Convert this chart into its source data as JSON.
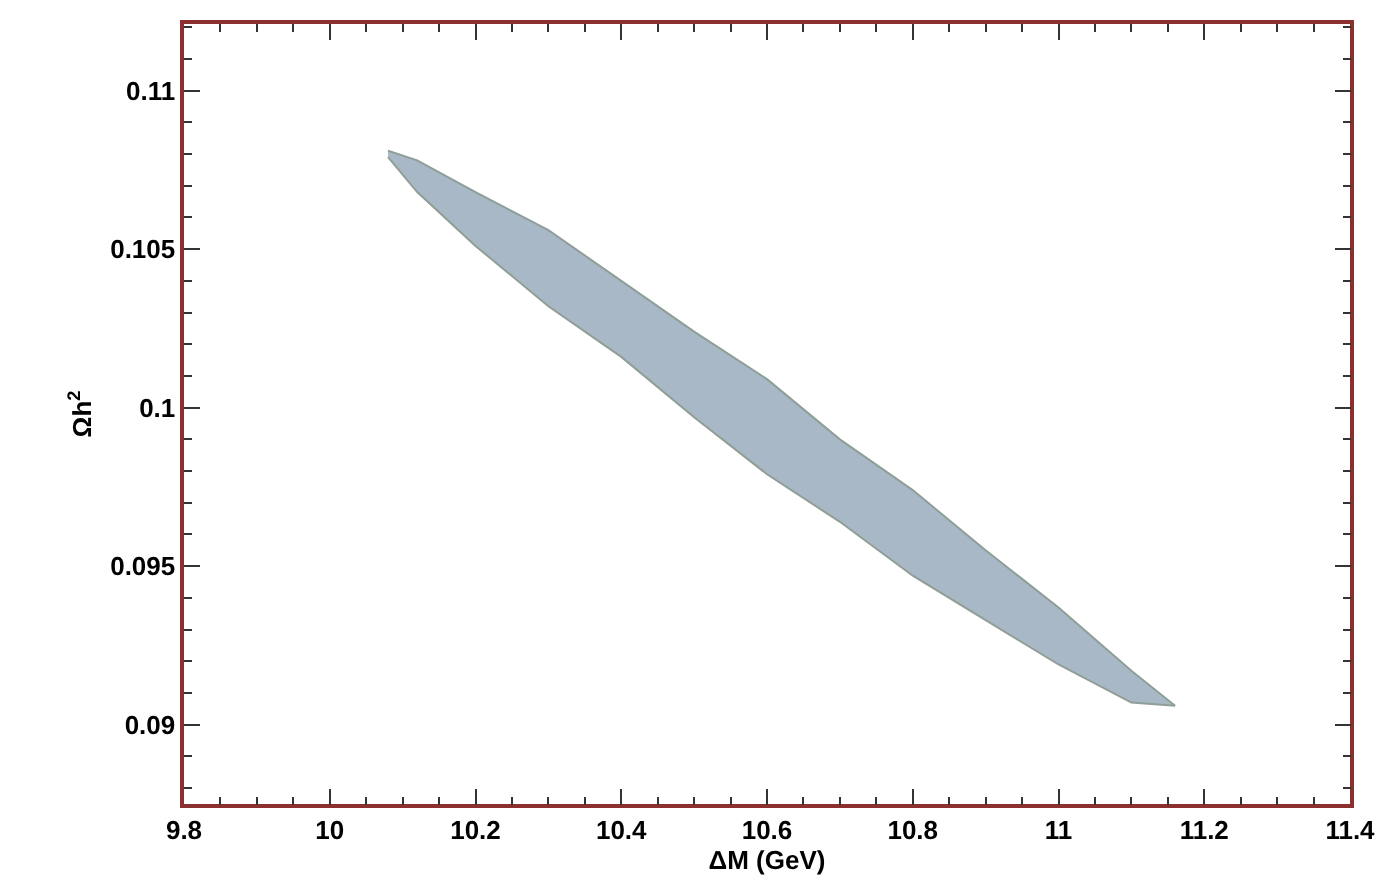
{
  "chart_data": {
    "type": "area",
    "xlabel": "ΔM (GeV)",
    "ylabel": "Ωh$^{2}$",
    "series": [
      {
        "type": "line",
        "color": "#8f9e96",
        "x": [
          10.08,
          10.12,
          10.2,
          10.3,
          10.4,
          10.5,
          10.6,
          10.7,
          10.8,
          10.9,
          11.0,
          11.1,
          11.16
        ],
        "values": [
          0.1079,
          0.1068,
          0.1051,
          0.1032,
          0.1016,
          0.0997,
          0.0979,
          0.0964,
          0.0947,
          0.0933,
          0.0919,
          0.0907,
          0.0906
        ]
      },
      {
        "color": "#a9b8c6",
        "x": [
          10.08,
          10.12,
          10.2,
          10.3,
          10.4,
          10.5,
          10.6,
          10.7,
          10.8,
          10.9,
          11.0,
          11.1,
          11.16
        ],
        "values": [
          0.1081,
          0.1078,
          0.1068,
          0.1056,
          0.104,
          0.1024,
          0.1009,
          0.099,
          0.0974,
          0.0955,
          0.0937,
          0.0917,
          0.0906
        ]
      }
    ],
    "xlim": [
      9.8,
      11.4
    ],
    "xticks": [
      9.8,
      10,
      10.2,
      10.4,
      10.6,
      10.8,
      11,
      11.2,
      11.4
    ],
    "ylim": [
      0.0875,
      0.1121
    ],
    "yticks": [
      0.09,
      0.095,
      0.1,
      0.105,
      0.11
    ],
    "grid": false
  }
}
